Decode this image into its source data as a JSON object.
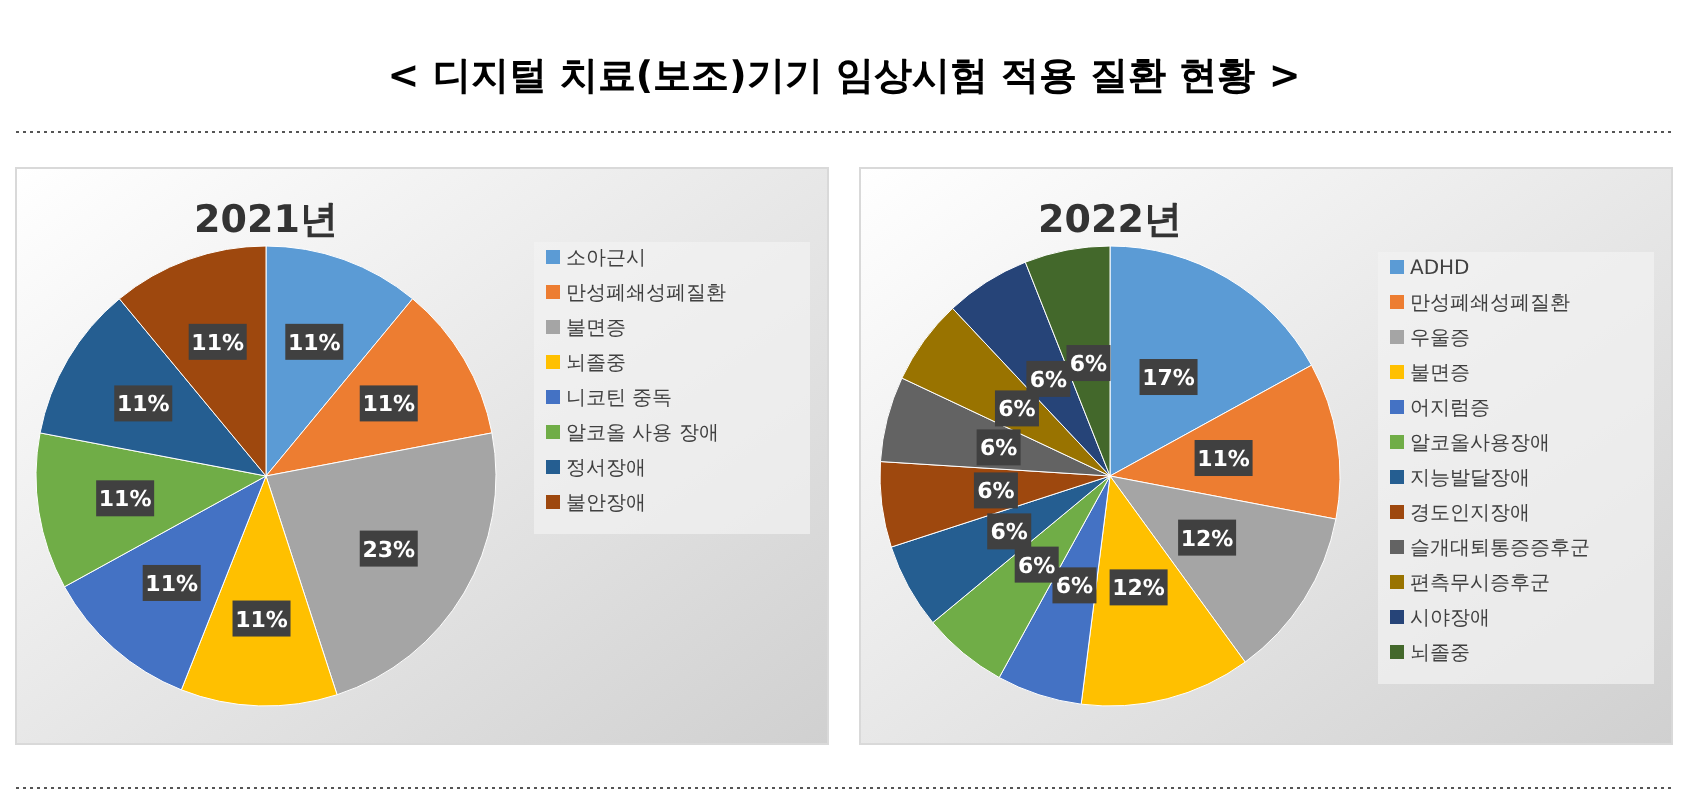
{
  "chart_data": [
    {
      "type": "other",
      "title": "< 디지털 치료(보조)기기 임상시험 적용 질환 현황 >"
    },
    {
      "type": "pie",
      "title": "2021년",
      "legend": "right",
      "categories": [
        "소아근시",
        "만성폐쇄성폐질환",
        "불면증",
        "뇌졸중",
        "니코틴 중독",
        "알코올 사용 장애",
        "정서장애",
        "불안장애"
      ],
      "values": [
        11,
        11,
        23,
        11,
        11,
        11,
        11,
        11
      ],
      "value_labels": [
        "11%",
        "11%",
        "23%",
        "11%",
        "11%",
        "11%",
        "11%",
        "11%"
      ],
      "colors": [
        "#5b9bd5",
        "#ed7d31",
        "#a5a5a5",
        "#ffc000",
        "#4472c4",
        "#70ad47",
        "#255e91",
        "#9e480e"
      ]
    },
    {
      "type": "pie",
      "title": "2022년",
      "legend": "right",
      "categories": [
        "ADHD",
        "만성폐쇄성폐질환",
        "우울증",
        "불면증",
        "어지럼증",
        "알코올사용장애",
        "지능발달장애",
        "경도인지장애",
        "슬개대퇴통증증후군",
        "편측무시증후군",
        "시야장애",
        "뇌졸중"
      ],
      "values": [
        17,
        11,
        12,
        12,
        6,
        6,
        6,
        6,
        6,
        6,
        6,
        6
      ],
      "value_labels": [
        "17%",
        "11%",
        "12%",
        "12%",
        "6%",
        "6%",
        "6%",
        "6%",
        "6%",
        "6%",
        "6%",
        "6%"
      ],
      "colors": [
        "#5b9bd5",
        "#ed7d31",
        "#a5a5a5",
        "#ffc000",
        "#4472c4",
        "#70ad47",
        "#255e91",
        "#9e480e",
        "#636363",
        "#997300",
        "#264478",
        "#43682b"
      ]
    }
  ]
}
